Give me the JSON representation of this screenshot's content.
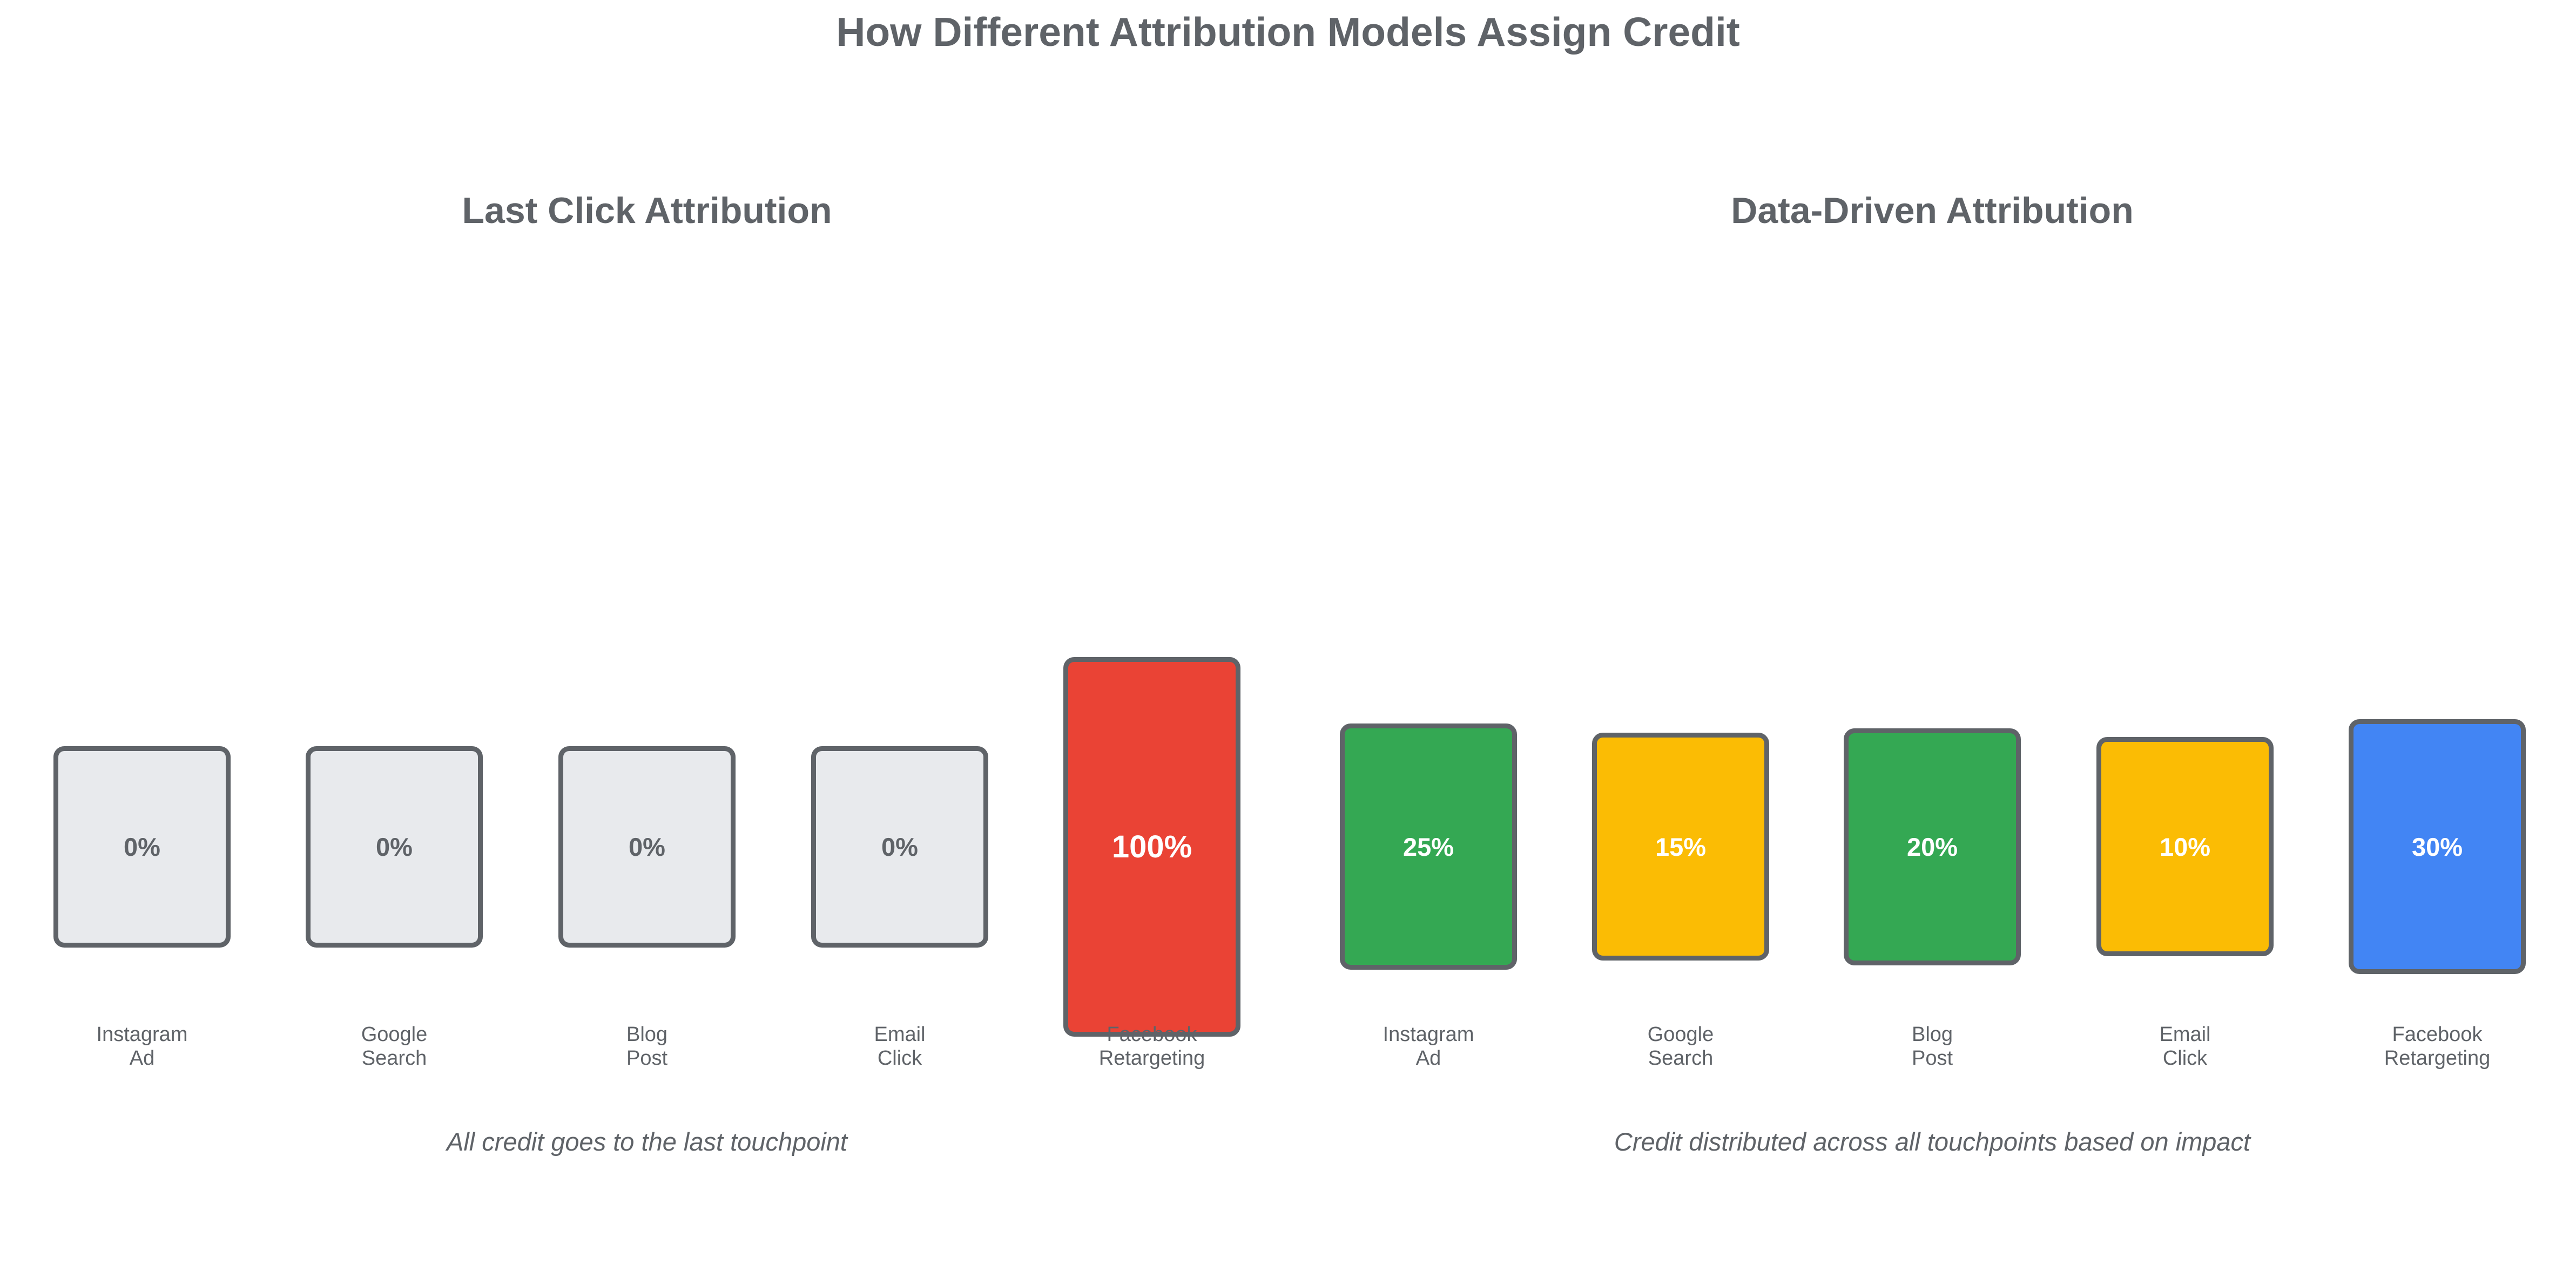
{
  "title": "How Different Attribution Models Assign Credit",
  "colors": {
    "text": "#5f6368",
    "outline": "#5f6368",
    "neutral": "#e8eaed",
    "red": "#ea4335",
    "green": "#34a853",
    "yellow": "#fbbc04",
    "blue": "#4285f4"
  },
  "panels": [
    {
      "title": "Last Click Attribution",
      "caption": "All credit goes to the last touchpoint",
      "touchpoints": [
        {
          "line1": "Instagram",
          "line2": "Ad",
          "label": "0%",
          "credit": 0,
          "fill": "#e8eaed",
          "text_color": "#5f6368"
        },
        {
          "line1": "Google",
          "line2": "Search",
          "label": "0%",
          "credit": 0,
          "fill": "#e8eaed",
          "text_color": "#5f6368"
        },
        {
          "line1": "Blog",
          "line2": "Post",
          "label": "0%",
          "credit": 0,
          "fill": "#e8eaed",
          "text_color": "#5f6368"
        },
        {
          "line1": "Email",
          "line2": "Click",
          "label": "0%",
          "credit": 0,
          "fill": "#e8eaed",
          "text_color": "#5f6368"
        },
        {
          "line1": "Facebook",
          "line2": "Retargeting",
          "label": "100%",
          "credit": 100,
          "fill": "#ea4335",
          "text_color": "#ffffff"
        }
      ]
    },
    {
      "title": "Data-Driven Attribution",
      "caption": "Credit distributed across all touchpoints based on impact",
      "touchpoints": [
        {
          "line1": "Instagram",
          "line2": "Ad",
          "label": "25%",
          "credit": 25,
          "fill": "#34a853",
          "text_color": "#ffffff"
        },
        {
          "line1": "Google",
          "line2": "Search",
          "label": "15%",
          "credit": 15,
          "fill": "#fbbc04",
          "text_color": "#ffffff"
        },
        {
          "line1": "Blog",
          "line2": "Post",
          "label": "20%",
          "credit": 20,
          "fill": "#34a853",
          "text_color": "#ffffff"
        },
        {
          "line1": "Email",
          "line2": "Click",
          "label": "10%",
          "credit": 10,
          "fill": "#fbbc04",
          "text_color": "#ffffff"
        },
        {
          "line1": "Facebook",
          "line2": "Retargeting",
          "label": "30%",
          "credit": 30,
          "fill": "#4285f4",
          "text_color": "#ffffff"
        }
      ]
    }
  ]
}
